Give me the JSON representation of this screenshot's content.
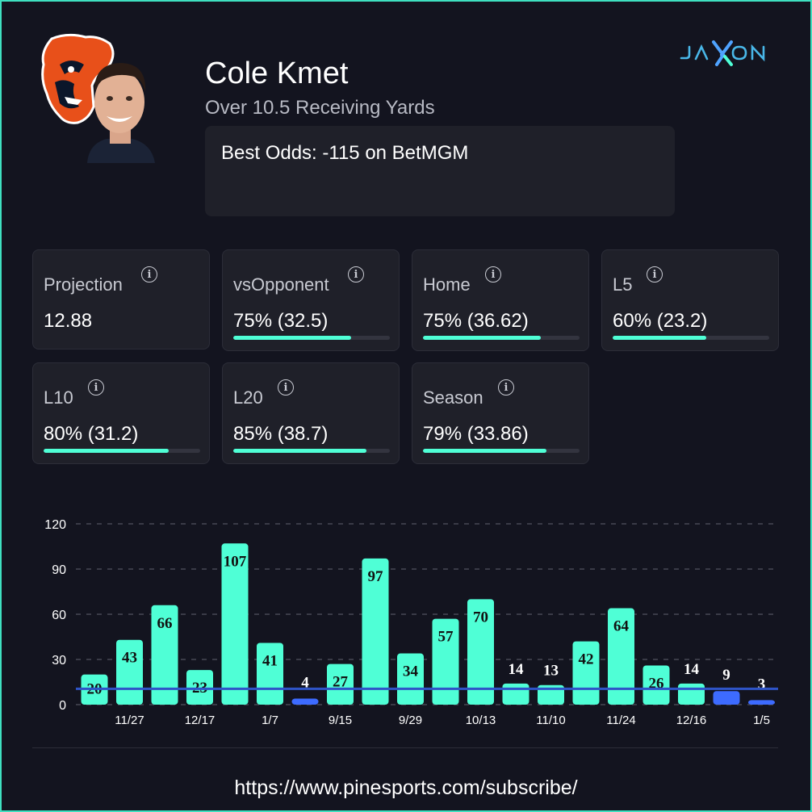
{
  "player": {
    "name": "Cole Kmet",
    "bet_line": "Over 10.5 Receiving Yards",
    "best_odds": "Best Odds: -115 on BetMGM"
  },
  "brand": {
    "logo_text": "JAXON"
  },
  "stats": [
    {
      "label": "Projection",
      "value": "12.88",
      "fill_fraction": null
    },
    {
      "label": "vsOpponent",
      "value": "75% (32.5)",
      "fill_fraction": 0.75
    },
    {
      "label": "Home",
      "value": "75% (36.62)",
      "fill_fraction": 0.75
    },
    {
      "label": "L5",
      "value": "60% (23.2)",
      "fill_fraction": 0.6
    },
    {
      "label": "L10",
      "value": "80% (31.2)",
      "fill_fraction": 0.8
    },
    {
      "label": "L20",
      "value": "85% (38.7)",
      "fill_fraction": 0.85
    },
    {
      "label": "Season",
      "value": "79% (33.86)",
      "fill_fraction": 0.79
    }
  ],
  "info_icon": "info-circle-icon",
  "colors": {
    "background": "#13141f",
    "card": "#1f2029",
    "accent": "#4fffd6",
    "under": "#3d6bff",
    "line": "#2f54c8",
    "frame": "#3fe0c0",
    "team_orange": "#e8501a",
    "team_navy": "#0b162a"
  },
  "chart_data": {
    "type": "bar",
    "values": [
      20,
      43,
      66,
      23,
      107,
      41,
      4,
      27,
      97,
      34,
      57,
      70,
      14,
      13,
      42,
      64,
      26,
      14,
      9,
      3
    ],
    "x_tick_labels": [
      "",
      "11/27",
      "",
      "12/17",
      "",
      "1/7",
      "",
      "9/15",
      "",
      "9/29",
      "",
      "10/13",
      "",
      "11/10",
      "",
      "11/24",
      "",
      "12/16",
      "",
      "1/5"
    ],
    "y_ticks": [
      "0",
      "30",
      "60",
      "90",
      "120"
    ],
    "ylim": [
      0,
      120
    ],
    "line_value": 10.5,
    "grid": true,
    "title": "",
    "xlabel": "",
    "ylabel": ""
  },
  "footer": {
    "url": "https://www.pinesports.com/subscribe/"
  }
}
